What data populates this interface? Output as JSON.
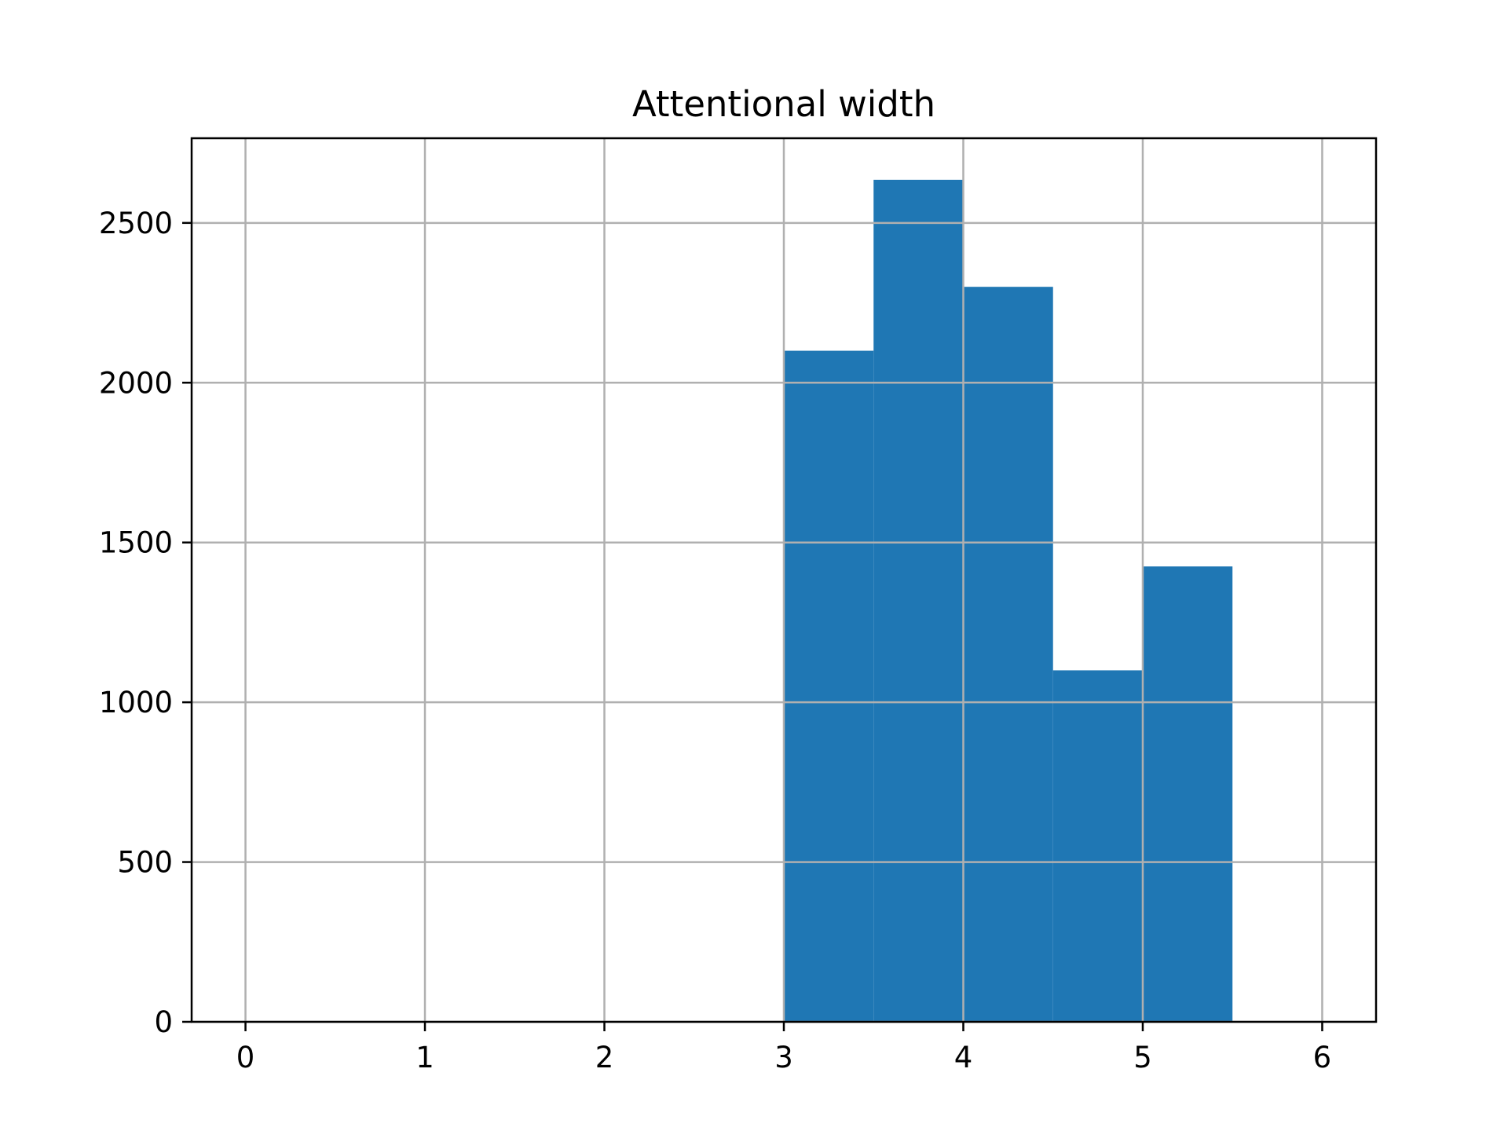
{
  "chart_data": {
    "type": "bar",
    "title": "Attentional width",
    "xlabel": "",
    "ylabel": "",
    "x_ticks": [
      0,
      1,
      2,
      3,
      4,
      5,
      6
    ],
    "y_ticks": [
      0,
      500,
      1000,
      1500,
      2000,
      2500
    ],
    "xlim": [
      -0.3,
      6.3
    ],
    "ylim": [
      0,
      2765
    ],
    "grid": true,
    "bar_color": "#1f77b4",
    "bins": [
      {
        "start": 3.0,
        "end": 3.5,
        "value": 2100
      },
      {
        "start": 3.5,
        "end": 4.0,
        "value": 2635
      },
      {
        "start": 4.0,
        "end": 4.5,
        "value": 2300
      },
      {
        "start": 4.5,
        "end": 5.0,
        "value": 1100
      },
      {
        "start": 5.0,
        "end": 5.5,
        "value": 1425
      }
    ]
  }
}
